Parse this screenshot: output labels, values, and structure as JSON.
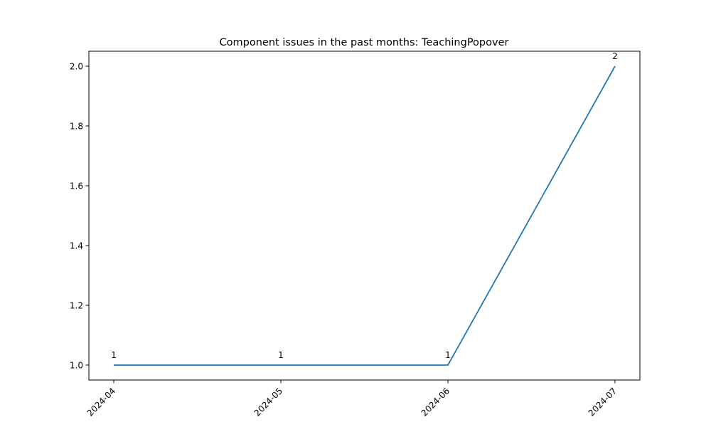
{
  "chart_data": {
    "type": "line",
    "title": "Component issues in the past months: TeachingPopover",
    "xlabel": "",
    "ylabel": "",
    "categories": [
      "2024-04",
      "2024-05",
      "2024-06",
      "2024-07"
    ],
    "series": [
      {
        "values": [
          1,
          1,
          1,
          2
        ],
        "color": "#1f77b4"
      }
    ],
    "data_labels": [
      "1",
      "1",
      "1",
      "2"
    ],
    "yticks": [
      "1.0",
      "1.2",
      "1.4",
      "1.6",
      "1.8",
      "2.0"
    ],
    "ylim": [
      0.95,
      2.05
    ],
    "grid": false,
    "legend": "none"
  }
}
